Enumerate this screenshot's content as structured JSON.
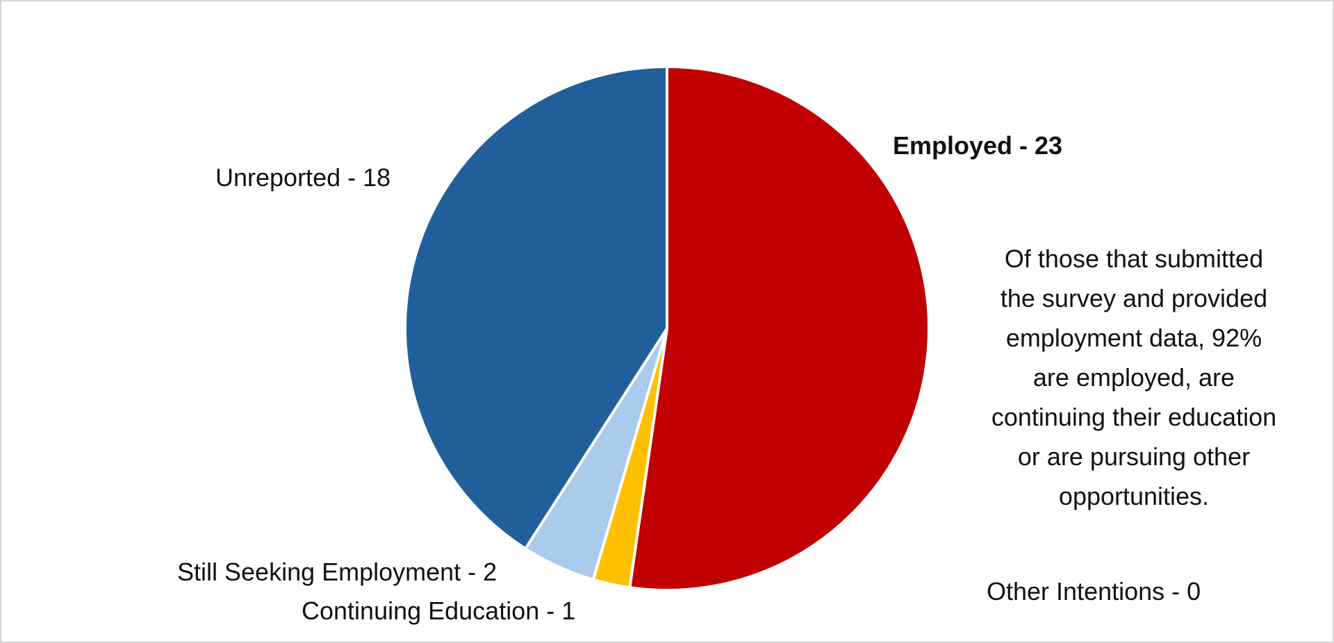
{
  "chart_data": {
    "type": "pie",
    "slices": [
      {
        "label": "Employed",
        "value": 23,
        "label_text": "Employed - 23",
        "color": "#C00000"
      },
      {
        "label": "Other Intentions",
        "value": 0,
        "label_text": "Other Intentions - 0",
        "color": "#7F7F7F"
      },
      {
        "label": "Continuing Education",
        "value": 1,
        "label_text": "Continuing Education - 1",
        "color": "#FFC000"
      },
      {
        "label": "Still Seeking Employment",
        "value": 2,
        "label_text": "Still Seeking Employment - 2",
        "color": "#A9CBEC"
      },
      {
        "label": "Unreported",
        "value": 18,
        "label_text": "Unreported - 18",
        "color": "#215F9A"
      }
    ],
    "annotation": "Of those that submitted\nthe survey and provided\nemployment data, 92%\nare employed, are\ncontinuing their education\nor are pursuing other\nopportunities."
  }
}
